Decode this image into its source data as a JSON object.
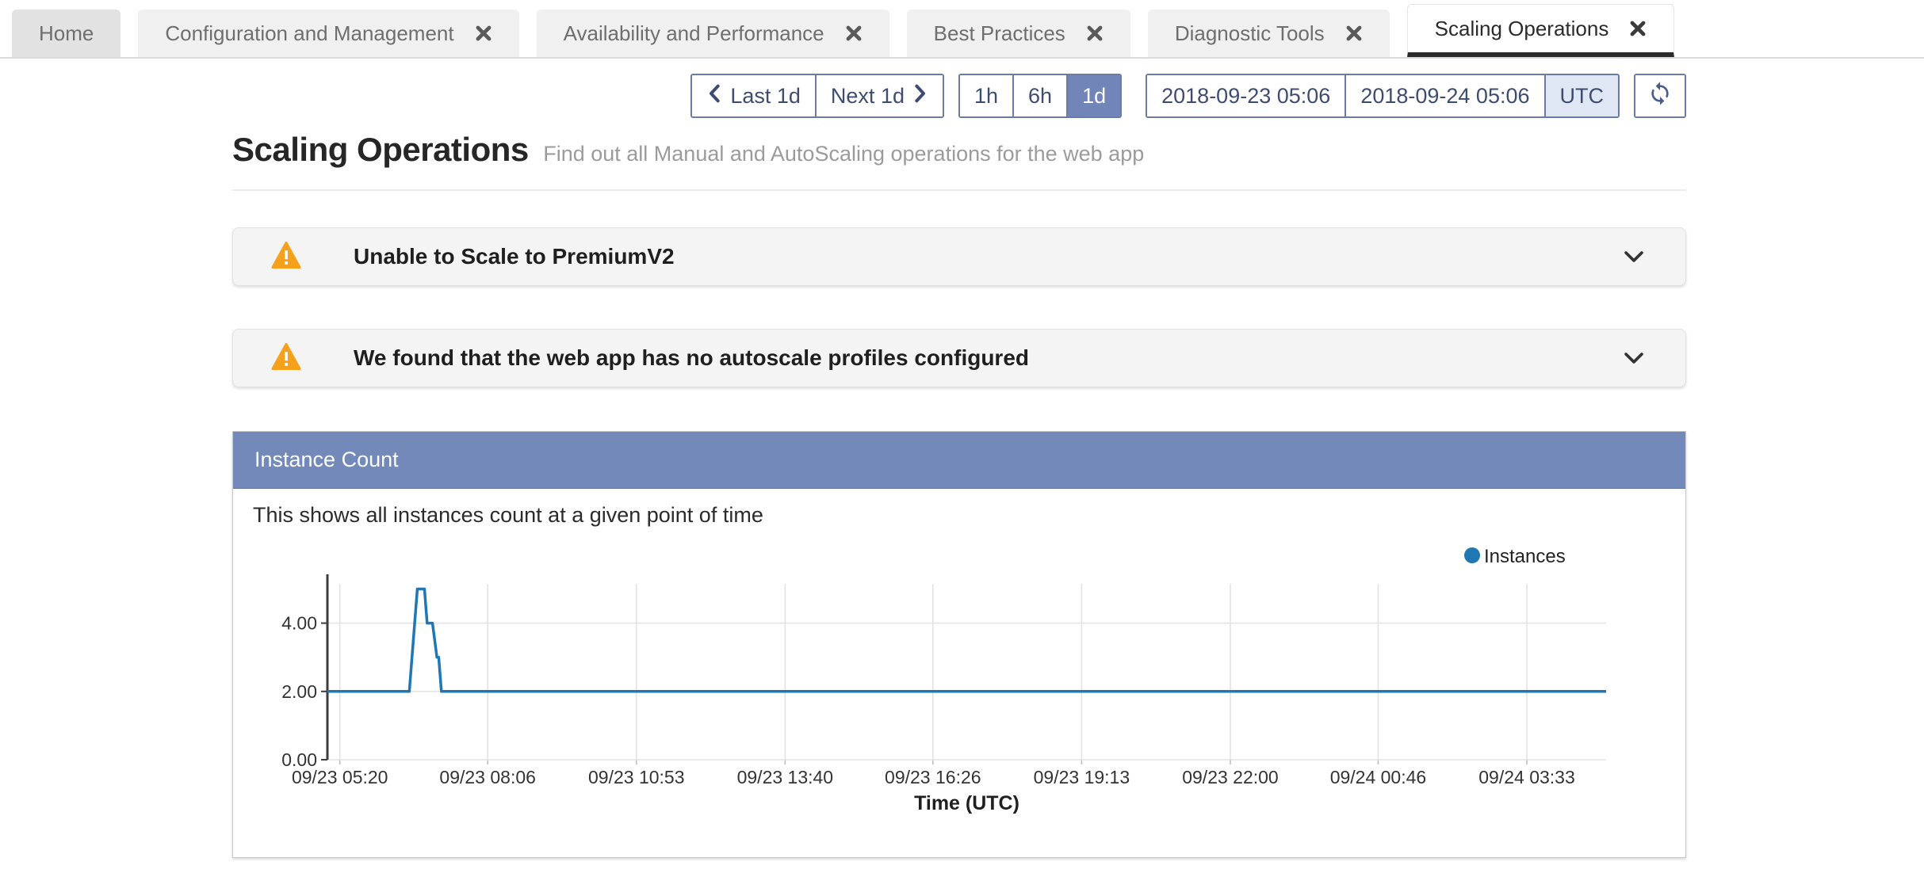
{
  "colors": {
    "accent_header": "#7289BA",
    "selected_range_bg": "#7285B8",
    "toolbar_border": "#6B7BA4",
    "warning_icon": "#F5A11C",
    "series_line": "#1F77B4",
    "active_tab_underline": "#2B2B2B"
  },
  "tabs": {
    "items": [
      {
        "label": "Home",
        "closable": false,
        "active": false
      },
      {
        "label": "Configuration and Management",
        "closable": true,
        "active": false
      },
      {
        "label": "Availability and Performance",
        "closable": true,
        "active": false
      },
      {
        "label": "Best Practices",
        "closable": true,
        "active": false
      },
      {
        "label": "Diagnostic Tools",
        "closable": true,
        "active": false
      },
      {
        "label": "Scaling Operations",
        "closable": true,
        "active": true
      }
    ]
  },
  "toolbar": {
    "last_label": "Last 1d",
    "next_label": "Next 1d",
    "range_options": [
      "1h",
      "6h",
      "1d"
    ],
    "selected_range": "1d",
    "start_time": "2018-09-23 05:06",
    "end_time": "2018-09-24 05:06",
    "timezone": "UTC"
  },
  "header": {
    "title": "Scaling Operations",
    "subtitle": "Find out all Manual and AutoScaling operations for the web app"
  },
  "warnings": [
    {
      "title": "Unable to Scale to PremiumV2"
    },
    {
      "title": "We found that the web app has no autoscale profiles configured"
    }
  ],
  "panel": {
    "title": "Instance Count",
    "description": "This shows all instances count at a given point of time"
  },
  "chart_data": {
    "type": "line",
    "title": "Instance Count",
    "xlabel": "Time (UTC)",
    "ylabel": "",
    "grid": true,
    "legend_position": "top-right",
    "x_start": "2018-09-23 05:06",
    "x_end": "2018-09-24 05:06",
    "x_domain_minutes": [
      0,
      1436
    ],
    "ylim": [
      0,
      5.15
    ],
    "x_ticks": [
      {
        "m": 14,
        "label": "09/23 05:20"
      },
      {
        "m": 180,
        "label": "09/23 08:06"
      },
      {
        "m": 347,
        "label": "09/23 10:53"
      },
      {
        "m": 514,
        "label": "09/23 13:40"
      },
      {
        "m": 680,
        "label": "09/23 16:26"
      },
      {
        "m": 847,
        "label": "09/23 19:13"
      },
      {
        "m": 1014,
        "label": "09/23 22:00"
      },
      {
        "m": 1180,
        "label": "09/24 00:46"
      },
      {
        "m": 1347,
        "label": "09/24 03:33"
      }
    ],
    "y_ticks": [
      {
        "v": 0,
        "label": "0.00"
      },
      {
        "v": 2,
        "label": "2.00"
      },
      {
        "v": 4,
        "label": "4.00"
      }
    ],
    "series": [
      {
        "name": "Instances",
        "color": "#1F77B4",
        "points": [
          {
            "t": "09/23 05:06",
            "m": 0,
            "v": 2
          },
          {
            "t": "09/23 06:38",
            "m": 92,
            "v": 2
          },
          {
            "t": "09/23 06:47",
            "m": 101,
            "v": 5
          },
          {
            "t": "09/23 06:55",
            "m": 109,
            "v": 5
          },
          {
            "t": "09/23 06:58",
            "m": 112,
            "v": 4
          },
          {
            "t": "09/23 07:04",
            "m": 118,
            "v": 4
          },
          {
            "t": "09/23 07:09",
            "m": 123,
            "v": 3
          },
          {
            "t": "09/23 07:11",
            "m": 125,
            "v": 3
          },
          {
            "t": "09/23 07:14",
            "m": 128,
            "v": 2
          },
          {
            "t": "09/24 05:02",
            "m": 1436,
            "v": 2
          }
        ]
      }
    ]
  }
}
